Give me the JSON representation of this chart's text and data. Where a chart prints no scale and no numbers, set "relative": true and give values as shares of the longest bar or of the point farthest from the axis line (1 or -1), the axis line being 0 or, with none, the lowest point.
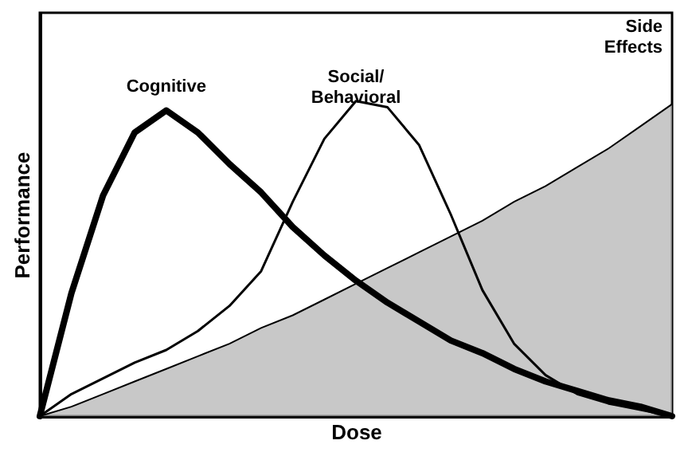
{
  "chart_data": {
    "type": "line",
    "relative": true,
    "xlabel": "Dose",
    "ylabel": "Performance",
    "categories": [
      null,
      null,
      null,
      null,
      null,
      null,
      null,
      null,
      null,
      null,
      null,
      null,
      null,
      null,
      null,
      null,
      null,
      null,
      null,
      null,
      null
    ],
    "series": [
      {
        "name": "Cognitive",
        "color": "#000000",
        "values": [
          0,
          0.39,
          0.7,
          0.9,
          0.97,
          0.9,
          0.8,
          0.71,
          0.6,
          0.51,
          0.43,
          0.36,
          0.3,
          0.24,
          0.2,
          0.15,
          0.11,
          0.08,
          0.05,
          0.03,
          0
        ]
      },
      {
        "name": "Social/ Behavioral",
        "color": "#000000",
        "values": [
          0,
          0.07,
          0.12,
          0.17,
          0.21,
          0.27,
          0.35,
          0.46,
          0.68,
          0.88,
          1,
          0.98,
          0.86,
          0.64,
          0.4,
          0.23,
          0.13,
          0.07,
          0.04,
          0.02,
          0
        ]
      },
      {
        "name": "Side Effects",
        "type": "area",
        "color": "#b0b0b0",
        "values": [
          0,
          0.03,
          0.07,
          0.11,
          0.15,
          0.19,
          0.23,
          0.28,
          0.32,
          0.37,
          0.42,
          0.47,
          0.52,
          0.57,
          0.62,
          0.68,
          0.73,
          0.79,
          0.85,
          0.92,
          0.99
        ]
      }
    ]
  }
}
